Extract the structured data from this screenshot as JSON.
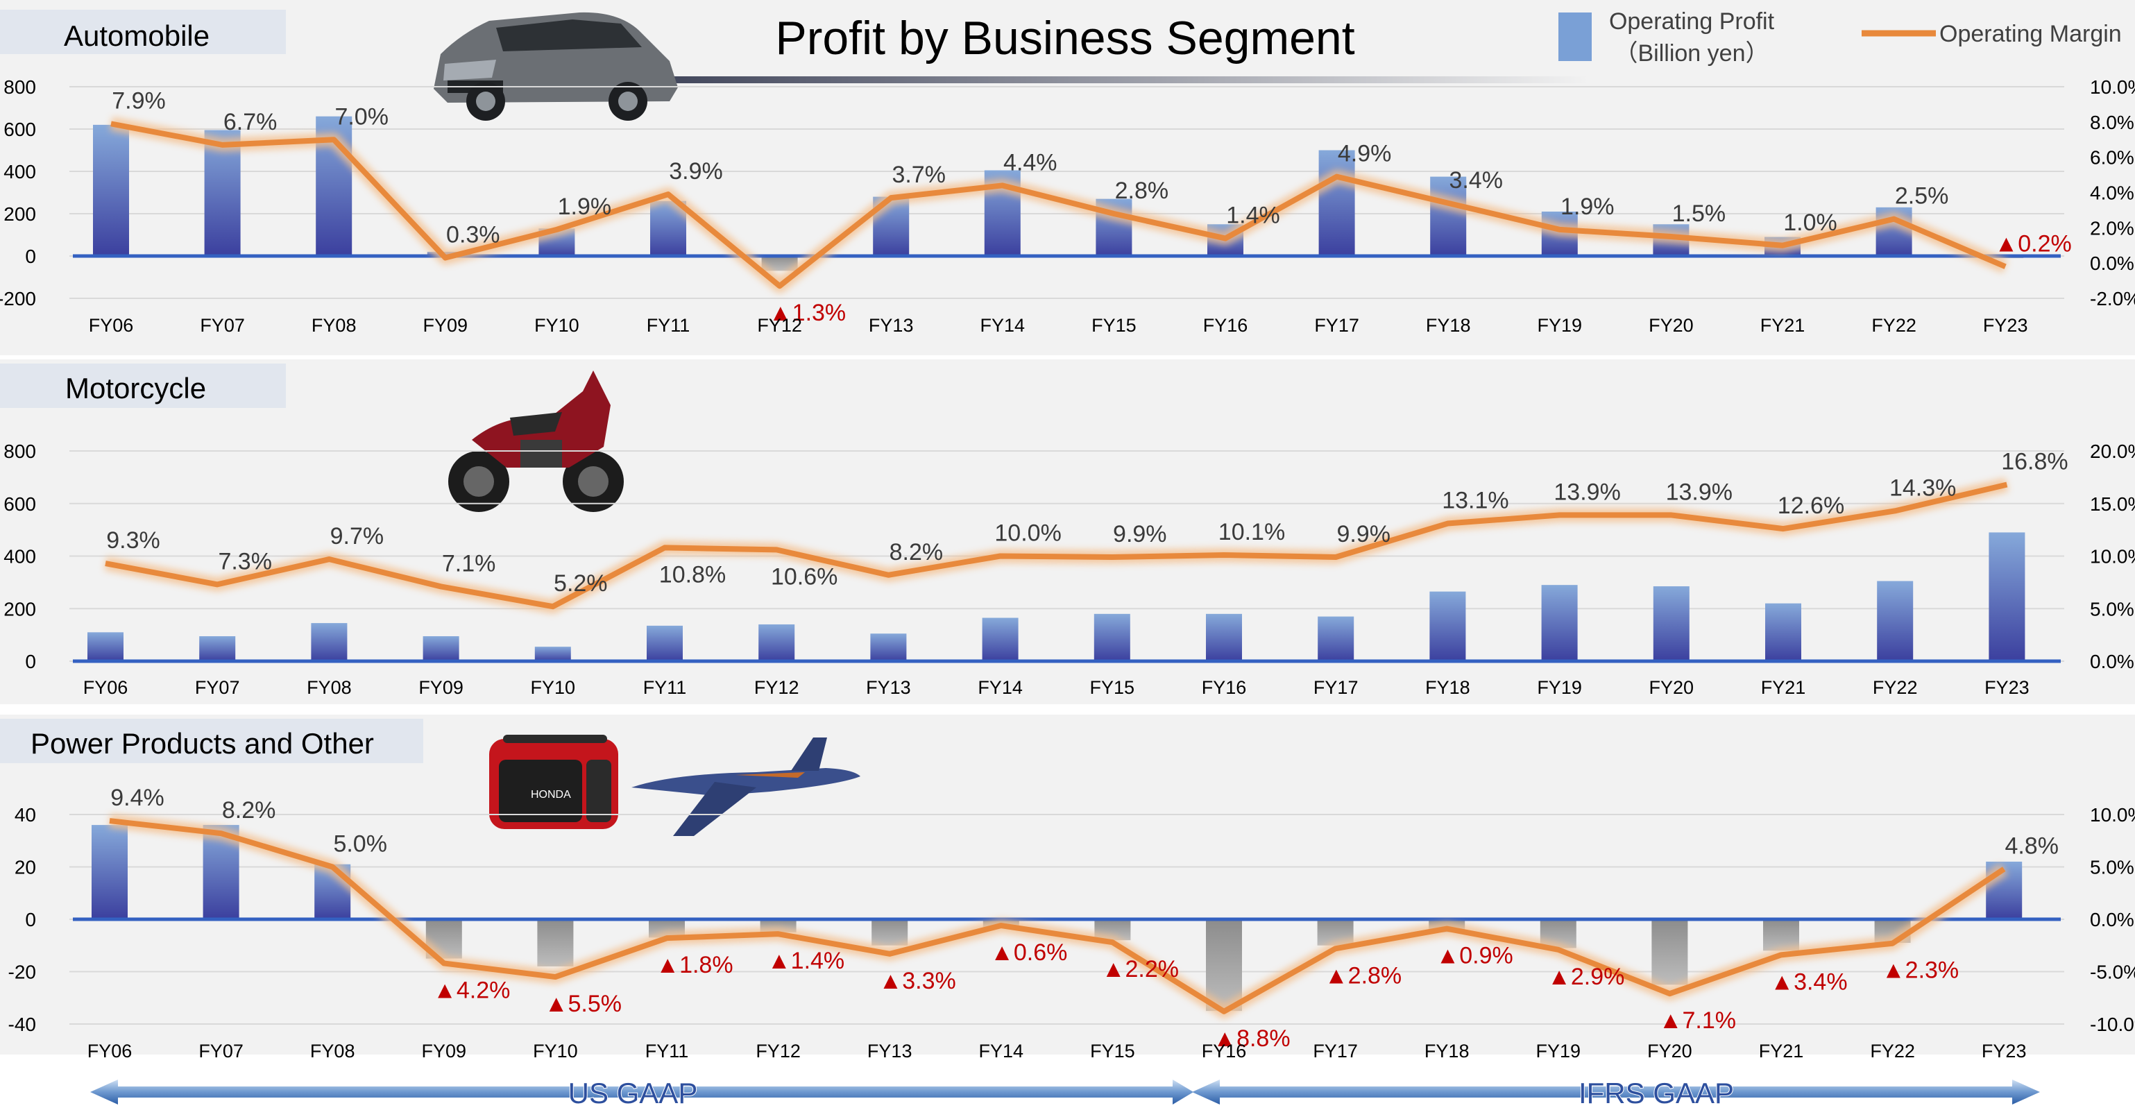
{
  "page": {
    "title": "Profit by Business Segment",
    "legend": {
      "bar_label_line1": "Operating Profit",
      "bar_label_line2": "（Billion yen）",
      "line_label": "Operating Margin"
    },
    "accounting": {
      "us": "US GAAP",
      "ifrs": "IFRS GAAP"
    }
  },
  "colors": {
    "bar_top": "#7fa3d6",
    "bar_bottom": "#3b3f9e",
    "bar_negative": "#a6a6a6",
    "line": "#e8893c",
    "baseline": "#3461c1",
    "negative_label": "#c00000",
    "label": "#3a3a3a",
    "panel_bg": "#f2f2f2",
    "grid": "#d9d9d9"
  },
  "icons": {
    "automobile": "suv-car-icon",
    "motorcycle": "motorcycle-icon",
    "power_products": "generator-icon",
    "aviation": "business-jet-icon",
    "negative_marker": "triangle-up-icon"
  },
  "chart_data": [
    {
      "type": "bar",
      "title": "Automobile",
      "categories": [
        "FY06",
        "FY07",
        "FY08",
        "FY09",
        "FY10",
        "FY11",
        "FY12",
        "FY13",
        "FY14",
        "FY15",
        "FY16",
        "FY17",
        "FY18",
        "FY19",
        "FY20",
        "FY21",
        "FY22",
        "FY23"
      ],
      "series": [
        {
          "name": "Operating Profit",
          "axis": "left",
          "values": [
            620,
            595,
            660,
            20,
            130,
            260,
            -70,
            280,
            405,
            270,
            150,
            500,
            375,
            210,
            150,
            90,
            230,
            -10
          ]
        },
        {
          "name": "Operating Margin",
          "axis": "right",
          "values": [
            7.9,
            6.7,
            7.0,
            0.3,
            1.9,
            3.9,
            -1.3,
            3.7,
            4.4,
            2.8,
            1.4,
            4.9,
            3.4,
            1.9,
            1.5,
            1.0,
            2.5,
            -0.2
          ]
        }
      ],
      "margin_labels": [
        "7.9%",
        "6.7%",
        "7.0%",
        "0.3%",
        "1.9%",
        "3.9%",
        "▲1.3%",
        "3.7%",
        "4.4%",
        "2.8%",
        "1.4%",
        "4.9%",
        "3.4%",
        "1.9%",
        "1.5%",
        "1.0%",
        "2.5%",
        "▲0.2%"
      ],
      "yticks_left": [
        "800",
        "600",
        "400",
        "200",
        "0",
        "-200"
      ],
      "yticks_right": [
        "10.0%",
        "8.0%",
        "6.0%",
        "4.0%",
        "2.0%",
        "0.0%",
        "-2.0%"
      ],
      "ylim_left": [
        -200,
        800
      ],
      "ylim_right": [
        -2,
        10
      ]
    },
    {
      "type": "bar",
      "title": "Motorcycle",
      "categories": [
        "FY06",
        "FY07",
        "FY08",
        "FY09",
        "FY10",
        "FY11",
        "FY12",
        "FY13",
        "FY14",
        "FY15",
        "FY16",
        "FY17",
        "FY18",
        "FY19",
        "FY20",
        "FY21",
        "FY22",
        "FY23"
      ],
      "series": [
        {
          "name": "Operating Profit",
          "axis": "left",
          "values": [
            110,
            95,
            145,
            95,
            55,
            135,
            140,
            105,
            165,
            180,
            180,
            170,
            265,
            290,
            285,
            220,
            305,
            490
          ]
        },
        {
          "name": "Operating Margin",
          "axis": "right",
          "values": [
            9.3,
            7.3,
            9.7,
            7.1,
            5.2,
            10.8,
            10.6,
            8.2,
            10.0,
            9.9,
            10.1,
            9.9,
            13.1,
            13.9,
            13.9,
            12.6,
            14.3,
            16.8
          ]
        }
      ],
      "margin_labels": [
        "9.3%",
        "7.3%",
        "9.7%",
        "7.1%",
        "5.2%",
        "10.8%",
        "10.6%",
        "8.2%",
        "10.0%",
        "9.9%",
        "10.1%",
        "9.9%",
        "13.1%",
        "13.9%",
        "13.9%",
        "12.6%",
        "14.3%",
        "16.8%"
      ],
      "yticks_left": [
        "800",
        "600",
        "400",
        "200",
        "0"
      ],
      "yticks_right": [
        "20.0%",
        "15.0%",
        "10.0%",
        "5.0%",
        "0.0%"
      ],
      "ylim_left": [
        0,
        800
      ],
      "ylim_right": [
        0,
        20
      ]
    },
    {
      "type": "bar",
      "title": "Power Products and Other",
      "categories": [
        "FY06",
        "FY07",
        "FY08",
        "FY09",
        "FY10",
        "FY11",
        "FY12",
        "FY13",
        "FY14",
        "FY15",
        "FY16",
        "FY17",
        "FY18",
        "FY19",
        "FY20",
        "FY21",
        "FY22",
        "FY23"
      ],
      "series": [
        {
          "name": "Operating Profit",
          "axis": "left",
          "values": [
            36,
            36,
            21,
            -15,
            -18,
            -7,
            -5,
            -10,
            -3,
            -8,
            -35,
            -10,
            -5,
            -11,
            -25,
            -12,
            -9,
            22
          ]
        },
        {
          "name": "Operating Margin",
          "axis": "right",
          "values": [
            9.4,
            8.2,
            5.0,
            -4.2,
            -5.5,
            -1.8,
            -1.4,
            -3.3,
            -0.6,
            -2.2,
            -8.8,
            -2.8,
            -0.9,
            -2.9,
            -7.1,
            -3.4,
            -2.3,
            4.8
          ]
        }
      ],
      "margin_labels": [
        "9.4%",
        "8.2%",
        "5.0%",
        "▲4.2%",
        "▲5.5%",
        "▲1.8%",
        "▲1.4%",
        "▲3.3%",
        "▲0.6%",
        "▲2.2%",
        "▲8.8%",
        "▲2.8%",
        "▲0.9%",
        "▲2.9%",
        "▲7.1%",
        "▲3.4%",
        "▲2.3%",
        "4.8%"
      ],
      "yticks_left": [
        "40",
        "20",
        "0",
        "-20",
        "-40"
      ],
      "yticks_right": [
        "10.0%",
        "5.0%",
        "0.0%",
        "-5.0%",
        "-10.0%"
      ],
      "ylim_left": [
        -40,
        40
      ],
      "ylim_right": [
        -10,
        10
      ]
    }
  ]
}
